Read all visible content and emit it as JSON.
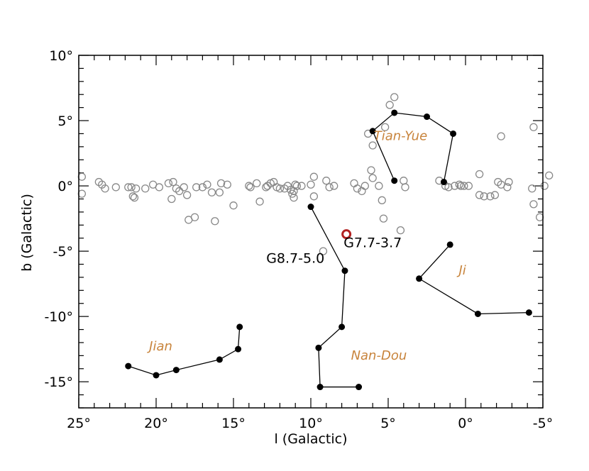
{
  "chart_data": {
    "type": "scatter",
    "xlabel": "l (Galactic)",
    "ylabel": "b (Galactic)",
    "xlim": [
      25,
      -5
    ],
    "ylim": [
      -17,
      10
    ],
    "x_major_ticks": [
      25,
      20,
      15,
      10,
      5,
      0,
      -5
    ],
    "y_major_ticks": [
      10,
      5,
      0,
      -5,
      -10,
      -15
    ],
    "x_tick_labels": [
      "25°",
      "20°",
      "15°",
      "10°",
      "5°",
      "0°",
      "-5°"
    ],
    "y_tick_labels": [
      "10°",
      "5°",
      "0°",
      "-5°",
      "-10°",
      "-15°"
    ],
    "grid": false,
    "colors": {
      "open_points": "#888888",
      "constellation": "#000000",
      "constellation_label": "#c8843c",
      "source_marker": "#b22222"
    },
    "open_points": [
      [
        24.8,
        0.7
      ],
      [
        24.8,
        -0.6
      ],
      [
        23.7,
        0.3
      ],
      [
        23.5,
        0.1
      ],
      [
        23.3,
        -0.2
      ],
      [
        22.6,
        -0.1
      ],
      [
        21.8,
        -0.1
      ],
      [
        21.6,
        -0.1
      ],
      [
        21.5,
        -0.8
      ],
      [
        21.4,
        -0.9
      ],
      [
        21.3,
        -0.2
      ],
      [
        20.7,
        -0.2
      ],
      [
        20.2,
        0.1
      ],
      [
        19.8,
        -0.1
      ],
      [
        19.2,
        0.2
      ],
      [
        18.9,
        0.3
      ],
      [
        18.7,
        -0.2
      ],
      [
        19.0,
        -1.0
      ],
      [
        18.5,
        -0.4
      ],
      [
        18.2,
        -0.1
      ],
      [
        18.0,
        -0.7
      ],
      [
        17.9,
        -2.6
      ],
      [
        17.5,
        -2.4
      ],
      [
        17.4,
        -0.1
      ],
      [
        17.0,
        -0.1
      ],
      [
        16.7,
        0.1
      ],
      [
        16.4,
        -0.5
      ],
      [
        16.2,
        -2.7
      ],
      [
        15.9,
        -0.5
      ],
      [
        15.8,
        0.2
      ],
      [
        15.4,
        0.1
      ],
      [
        15.0,
        -1.5
      ],
      [
        14.0,
        0.0
      ],
      [
        13.9,
        -0.1
      ],
      [
        13.5,
        0.2
      ],
      [
        13.3,
        -1.2
      ],
      [
        12.9,
        -0.1
      ],
      [
        12.8,
        0.0
      ],
      [
        12.6,
        0.2
      ],
      [
        12.4,
        0.3
      ],
      [
        12.2,
        -0.1
      ],
      [
        12.0,
        -0.2
      ],
      [
        11.7,
        -0.2
      ],
      [
        11.5,
        0.0
      ],
      [
        11.3,
        -0.3
      ],
      [
        11.2,
        -0.6
      ],
      [
        11.1,
        -0.9
      ],
      [
        11.1,
        -0.4
      ],
      [
        11.0,
        0.1
      ],
      [
        10.9,
        0.0
      ],
      [
        10.6,
        0.0
      ],
      [
        10.0,
        0.1
      ],
      [
        9.8,
        -0.8
      ],
      [
        9.8,
        0.7
      ],
      [
        9.0,
        0.4
      ],
      [
        8.8,
        -0.1
      ],
      [
        8.5,
        0.0
      ],
      [
        7.2,
        0.2
      ],
      [
        7.0,
        -0.2
      ],
      [
        6.7,
        -0.4
      ],
      [
        6.5,
        0.0
      ],
      [
        6.3,
        4.0
      ],
      [
        6.1,
        1.2
      ],
      [
        6.0,
        3.1
      ],
      [
        6.0,
        0.6
      ],
      [
        5.6,
        0.0
      ],
      [
        5.4,
        -1.1
      ],
      [
        5.3,
        -2.5
      ],
      [
        5.2,
        4.5
      ],
      [
        4.9,
        6.2
      ],
      [
        4.6,
        6.8
      ],
      [
        4.2,
        -3.4
      ],
      [
        4.0,
        0.4
      ],
      [
        3.9,
        -0.1
      ],
      [
        1.7,
        0.4
      ],
      [
        1.3,
        0.0
      ],
      [
        1.1,
        -0.1
      ],
      [
        0.7,
        0.0
      ],
      [
        0.4,
        0.1
      ],
      [
        0.3,
        0.0
      ],
      [
        0.1,
        0.0
      ],
      [
        -0.2,
        0.0
      ],
      [
        -0.9,
        0.9
      ],
      [
        -0.9,
        -0.7
      ],
      [
        -1.2,
        -0.8
      ],
      [
        -1.6,
        -0.8
      ],
      [
        -1.9,
        -0.7
      ],
      [
        -2.1,
        0.3
      ],
      [
        -2.3,
        0.1
      ],
      [
        -2.3,
        3.8
      ],
      [
        -2.7,
        -0.1
      ],
      [
        -2.8,
        0.3
      ],
      [
        -4.3,
        -0.2
      ],
      [
        -4.4,
        4.5
      ],
      [
        -4.4,
        -1.4
      ],
      [
        -4.8,
        -2.4
      ],
      [
        -5.1,
        0.0
      ],
      [
        -5.4,
        0.8
      ],
      [
        9.2,
        -5.0
      ]
    ],
    "constellations": [
      {
        "label": "Tian-Yue",
        "label_pos": [
          4.2,
          3.5
        ],
        "points": [
          [
            4.6,
            0.4
          ],
          [
            6.0,
            4.2
          ],
          [
            4.6,
            5.6
          ],
          [
            2.5,
            5.3
          ],
          [
            0.8,
            4.0
          ],
          [
            1.4,
            0.3
          ]
        ]
      },
      {
        "label": "Ji",
        "label_pos": [
          0.2,
          -6.8
        ],
        "points": [
          [
            1.0,
            -4.5
          ],
          [
            3.0,
            -7.1
          ],
          [
            -0.8,
            -9.8
          ],
          [
            -4.1,
            -9.7
          ]
        ]
      },
      {
        "label": "Jian",
        "label_pos": [
          19.7,
          -12.6
        ],
        "points": [
          [
            21.8,
            -13.8
          ],
          [
            20.0,
            -14.5
          ],
          [
            18.7,
            -14.1
          ],
          [
            15.9,
            -13.3
          ],
          [
            14.7,
            -12.5
          ],
          [
            14.6,
            -10.8
          ]
        ]
      },
      {
        "label": "Nan-Dou",
        "label_pos": [
          5.6,
          -13.3
        ],
        "points": [
          [
            10.0,
            -1.6
          ],
          [
            7.8,
            -6.5
          ],
          [
            8.0,
            -10.8
          ],
          [
            9.5,
            -12.4
          ],
          [
            9.4,
            -15.4
          ],
          [
            6.9,
            -15.4
          ]
        ]
      }
    ],
    "annotations": [
      {
        "text": "G7.7-3.7",
        "label_pos": [
          6.0,
          -4.7
        ],
        "marker": [
          7.7,
          -3.7
        ]
      },
      {
        "text": "G8.7-5.0",
        "label_pos": [
          11.0,
          -5.9
        ]
      }
    ]
  }
}
